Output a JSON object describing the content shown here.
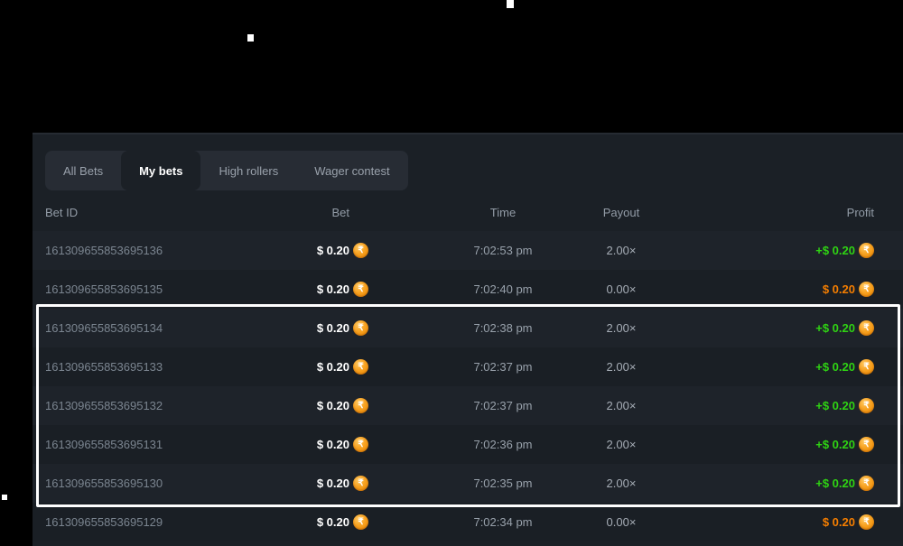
{
  "tabs": {
    "items": [
      {
        "label": "All Bets",
        "active": false
      },
      {
        "label": "My bets",
        "active": true
      },
      {
        "label": "High rollers",
        "active": false
      },
      {
        "label": "Wager contest",
        "active": false
      }
    ]
  },
  "table": {
    "headers": {
      "bet_id": "Bet ID",
      "bet": "Bet",
      "time": "Time",
      "payout": "Payout",
      "profit": "Profit"
    },
    "rows": [
      {
        "bet_id": "161309655853695136",
        "bet": "$ 0.20",
        "time": "7:02:53 pm",
        "payout": "2.00×",
        "profit": "+$ 0.20",
        "result": "win",
        "highlighted": false
      },
      {
        "bet_id": "161309655853695135",
        "bet": "$ 0.20",
        "time": "7:02:40 pm",
        "payout": "0.00×",
        "profit": "$ 0.20",
        "result": "loss",
        "highlighted": false
      },
      {
        "bet_id": "161309655853695134",
        "bet": "$ 0.20",
        "time": "7:02:38 pm",
        "payout": "2.00×",
        "profit": "+$ 0.20",
        "result": "win",
        "highlighted": true
      },
      {
        "bet_id": "161309655853695133",
        "bet": "$ 0.20",
        "time": "7:02:37 pm",
        "payout": "2.00×",
        "profit": "+$ 0.20",
        "result": "win",
        "highlighted": true
      },
      {
        "bet_id": "161309655853695132",
        "bet": "$ 0.20",
        "time": "7:02:37 pm",
        "payout": "2.00×",
        "profit": "+$ 0.20",
        "result": "win",
        "highlighted": true
      },
      {
        "bet_id": "161309655853695131",
        "bet": "$ 0.20",
        "time": "7:02:36 pm",
        "payout": "2.00×",
        "profit": "+$ 0.20",
        "result": "win",
        "highlighted": true
      },
      {
        "bet_id": "161309655853695130",
        "bet": "$ 0.20",
        "time": "7:02:35 pm",
        "payout": "2.00×",
        "profit": "+$ 0.20",
        "result": "win",
        "highlighted": true
      },
      {
        "bet_id": "161309655853695129",
        "bet": "$ 0.20",
        "time": "7:02:34 pm",
        "payout": "0.00×",
        "profit": "$ 0.20",
        "result": "loss",
        "highlighted": false
      }
    ]
  },
  "icons": {
    "currency_coin": {
      "name": "rupee-coin-icon",
      "glyph": "₹"
    }
  },
  "colors": {
    "win": "#2fd313",
    "loss": "#f57e00",
    "coin": "#f8a322",
    "highlight_border": "#ffffff"
  }
}
